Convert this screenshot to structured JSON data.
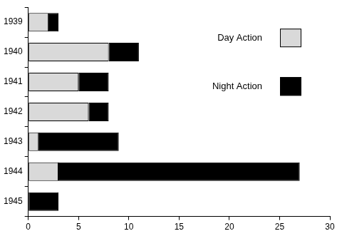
{
  "chart_data": {
    "type": "bar",
    "orientation": "horizontal",
    "stacked": true,
    "categories": [
      "1939",
      "1940",
      "1941",
      "1942",
      "1943",
      "1944",
      "1945"
    ],
    "series": [
      {
        "name": "Day Action",
        "color": "#d9d9d9",
        "values": [
          2,
          8,
          5,
          6,
          1,
          3,
          0
        ]
      },
      {
        "name": "Night Action",
        "color": "#000000",
        "values": [
          1,
          3,
          3,
          2,
          8,
          24,
          3
        ]
      }
    ],
    "xlim": [
      0,
      30
    ],
    "xticks": [
      0,
      5,
      10,
      15,
      20,
      25,
      30
    ],
    "grid": false,
    "legend": "upper right"
  }
}
